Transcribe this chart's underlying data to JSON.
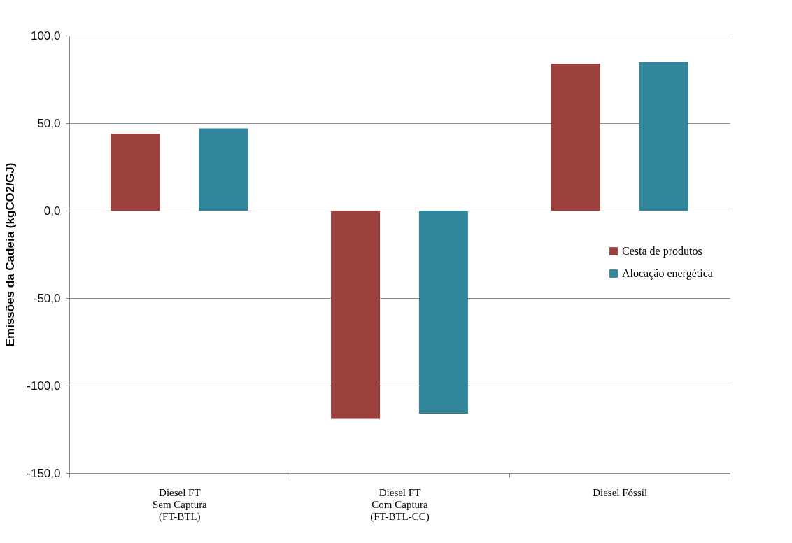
{
  "chart_data": {
    "type": "bar",
    "ylabel": "Emissões da Cadeia (kgCO2/GJ)",
    "categories": [
      "Diesel FT\nSem Captura\n(FT-BTL)",
      "Diesel FT\nCom Captura\n(FT-BTL-CC)",
      "Diesel Fóssil"
    ],
    "series": [
      {
        "name": "Cesta de produtos",
        "color": "#9c403e",
        "values": [
          44,
          -119,
          84
        ]
      },
      {
        "name": "Alocação energética",
        "color": "#32869c",
        "values": [
          47,
          -116,
          85
        ]
      }
    ],
    "ylim": [
      -150,
      100
    ],
    "yticks": [
      {
        "value": -150,
        "label": "-150,0"
      },
      {
        "value": -100,
        "label": "-100,0"
      },
      {
        "value": -50,
        "label": "-50,0"
      },
      {
        "value": 0,
        "label": "0,0"
      },
      {
        "value": 50,
        "label": "50,0"
      },
      {
        "value": 100,
        "label": "100,0"
      }
    ],
    "grid": "y",
    "legend": "right"
  }
}
